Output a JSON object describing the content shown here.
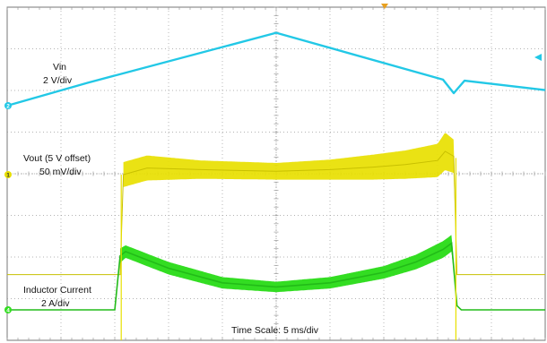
{
  "chart_data": {
    "type": "line",
    "title": "",
    "xlabel": "Time Scale: 5 ms/div",
    "ylabel": "",
    "grid": true,
    "divisions": {
      "x": 10,
      "y": 8
    },
    "time_per_div_ms": 5,
    "x_unit": "ms",
    "xlim": [
      0,
      50
    ],
    "series": [
      {
        "name": "Vin",
        "scale": "2 V/div",
        "channel": "2",
        "unit": "V",
        "color": "#22c8e6",
        "x": [
          0,
          7.5,
          25,
          40.5,
          41.5,
          42.5,
          50
        ],
        "y": [
          0,
          1.1,
          3.5,
          1.25,
          0.6,
          1.2,
          0.75
        ]
      },
      {
        "name": "Vout (5 V offset)",
        "scale": "50 mV/div",
        "channel": "1",
        "unit": "mV",
        "color": "#e8e000",
        "x": [
          0,
          10.5,
          10.8,
          13,
          18,
          25,
          30,
          34,
          37,
          40,
          40.7,
          41.5,
          41.8,
          50
        ],
        "y": [
          -120,
          -120,
          0,
          8,
          6,
          4,
          6,
          9,
          12,
          17,
          28,
          22,
          -120,
          -120
        ],
        "ripple_mv": [
          0,
          0,
          30,
          30,
          22,
          20,
          24,
          30,
          34,
          40,
          45,
          40,
          0,
          0
        ]
      },
      {
        "name": "Inductor Current",
        "scale": "2 A/div",
        "channel": "4",
        "unit": "A",
        "color": "#33dd22",
        "x": [
          0,
          10,
          10.5,
          11,
          15,
          20,
          25,
          30,
          35,
          38,
          40.5,
          41.3,
          41.8,
          42.2,
          50
        ],
        "y": [
          0,
          0,
          2.6,
          2.8,
          2.0,
          1.3,
          1.1,
          1.3,
          1.8,
          2.3,
          2.9,
          3.2,
          0.2,
          0,
          0
        ],
        "ripple_a": [
          0,
          0,
          0.7,
          0.6,
          0.6,
          0.55,
          0.5,
          0.55,
          0.6,
          0.7,
          0.8,
          0.8,
          0,
          0,
          0
        ]
      }
    ],
    "annotations": [
      "Vin",
      "2 V/div",
      "Vout (5 V offset)",
      "50 mV/div",
      "Inductor Current",
      "2 A/div",
      "Time Scale: 5 ms/div"
    ]
  },
  "labels": {
    "vin_name": "Vin",
    "vin_scale": "2 V/div",
    "vout_name": "Vout (5 V offset)",
    "vout_scale": "50 mV/div",
    "il_name": "Inductor Current",
    "il_scale": "2 A/div",
    "timescale": "Time Scale: 5 ms/div"
  },
  "markers": {
    "ch1": "1",
    "ch2": "2",
    "ch4": "4"
  },
  "colors": {
    "background": "#ffffff",
    "grid": "#9a9a9a",
    "frame": "#777777",
    "trigger": "#e8a020",
    "ch1": "#e8e000",
    "ch2": "#22c8e6",
    "ch4": "#33dd22"
  }
}
